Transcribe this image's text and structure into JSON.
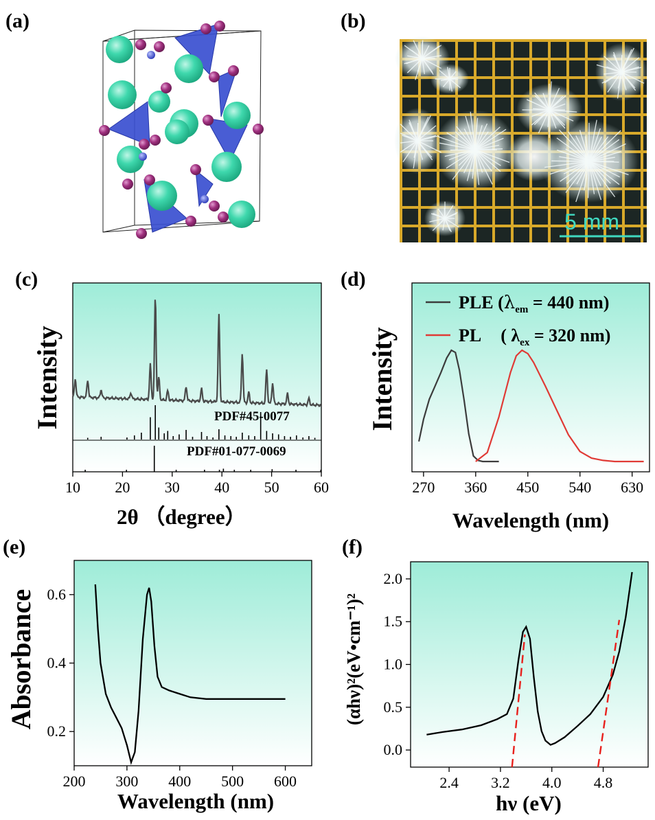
{
  "panels": {
    "a": "(a)",
    "b": "(b)",
    "c": "(c)",
    "d": "(d)",
    "e": "(e)",
    "f": "(f)"
  },
  "photo": {
    "scale_bar": "5 mm"
  },
  "colors": {
    "plot_bg_top": "#9eecd8",
    "plot_bg_bottom": "#ffffff",
    "ple": "#3c3c3c",
    "pl": "#e03a35",
    "fit": "#e8201c",
    "teal_atom": "#39d6a8",
    "purple_atom": "#9c2c7c",
    "tetra": "#3a4fd0"
  },
  "chart_data": [
    {
      "panel": "c",
      "type": "line",
      "xlabel": "2θ （degree）",
      "ylabel": "Intensity",
      "xlim": [
        10,
        60
      ],
      "xticks": [
        "10",
        "20",
        "30",
        "40",
        "50",
        "60"
      ],
      "references": [
        "PDF#45-0077",
        "PDF#01-077-0069"
      ],
      "series": [
        {
          "x": [
            10.5,
            13.0,
            15.7,
            21.7,
            25.6,
            26.6,
            27.3,
            29.1,
            32.8,
            35.9,
            39.4,
            44.1,
            45.4,
            49.0,
            50.2,
            53.2,
            57.5
          ],
          "y": [
            0.18,
            0.17,
            0.08,
            0.06,
            0.34,
            1.0,
            0.22,
            0.09,
            0.14,
            0.12,
            0.85,
            0.48,
            0.1,
            0.33,
            0.2,
            0.1,
            0.06
          ]
        }
      ],
      "ref_sticks_45_0077": {
        "x": [
          13.0,
          15.7,
          20.9,
          22.4,
          23.8,
          25.6,
          26.6,
          27.3,
          28.4,
          29.1,
          30.2,
          31.4,
          32.8,
          34.1,
          35.9,
          37.0,
          38.2,
          39.4,
          40.6,
          41.8,
          42.9,
          44.1,
          45.4,
          46.6,
          47.8,
          49.0,
          50.2,
          51.4,
          52.6,
          53.8,
          55.0,
          56.3,
          57.5,
          58.7
        ],
        "y": [
          0.05,
          0.08,
          0.06,
          0.12,
          0.2,
          0.65,
          1.0,
          0.35,
          0.18,
          0.25,
          0.1,
          0.15,
          0.28,
          0.08,
          0.22,
          0.1,
          0.06,
          0.3,
          0.12,
          0.1,
          0.08,
          0.2,
          0.12,
          0.1,
          0.8,
          0.25,
          0.18,
          0.15,
          0.1,
          0.08,
          0.12,
          0.06,
          0.1,
          0.05
        ]
      },
      "ref_sticks_01_077_0069": {
        "x": [
          12.5,
          20.8,
          26.4,
          30.8,
          36.5,
          39.5,
          40.3,
          42.5,
          45.8,
          50.1,
          54.9,
          59.9
        ],
        "y": [
          0.04,
          0.06,
          1.0,
          0.05,
          0.08,
          0.07,
          0.12,
          0.06,
          0.05,
          0.1,
          0.06,
          0.04
        ]
      }
    },
    {
      "panel": "d",
      "type": "line",
      "xlabel": "Wavelength (nm)",
      "ylabel": "Intensity",
      "xlim": [
        250,
        660
      ],
      "xticks": [
        "270",
        "360",
        "450",
        "540",
        "630"
      ],
      "legend": [
        {
          "label": "PLE (",
          "sym": "λ",
          "sub": "em",
          "rest": " = 440 nm)"
        },
        {
          "label": "PL",
          "sym": "( λ",
          "sub": "ex",
          "rest": " = 320 nm)"
        }
      ],
      "series": [
        {
          "name": "PLE (λem = 440 nm)",
          "x": [
            262,
            270,
            280,
            290,
            300,
            310,
            318,
            325,
            332,
            340,
            348,
            356,
            364,
            372,
            385,
            400
          ],
          "y": [
            0.18,
            0.38,
            0.56,
            0.68,
            0.8,
            0.93,
            1.0,
            0.98,
            0.82,
            0.55,
            0.25,
            0.05,
            0.01,
            0.0,
            0.0,
            0.0
          ]
        },
        {
          "name": "PL (λex = 320 nm)",
          "x": [
            360,
            380,
            400,
            420,
            430,
            440,
            450,
            460,
            480,
            500,
            520,
            540,
            560,
            580,
            600,
            630,
            650
          ],
          "y": [
            0.0,
            0.08,
            0.4,
            0.8,
            0.95,
            1.0,
            0.97,
            0.89,
            0.68,
            0.46,
            0.24,
            0.09,
            0.03,
            0.01,
            0.0,
            0.0,
            0.0
          ]
        }
      ]
    },
    {
      "panel": "e",
      "type": "line",
      "xlabel": "Wavelength (nm)",
      "ylabel": "Absorbance",
      "xlim": [
        200,
        650
      ],
      "ylim": [
        0.1,
        0.7
      ],
      "xticks": [
        "200",
        "300",
        "400",
        "500",
        "600"
      ],
      "yticks": [
        "0.2",
        "0.4",
        "0.6"
      ],
      "series": [
        {
          "x": [
            240,
            245,
            250,
            260,
            270,
            280,
            290,
            300,
            308,
            315,
            322,
            330,
            338,
            342,
            346,
            352,
            358,
            366,
            380,
            400,
            420,
            450,
            500,
            550,
            600
          ],
          "y": [
            0.63,
            0.5,
            0.4,
            0.31,
            0.27,
            0.24,
            0.21,
            0.16,
            0.11,
            0.14,
            0.26,
            0.47,
            0.6,
            0.62,
            0.58,
            0.45,
            0.36,
            0.33,
            0.32,
            0.31,
            0.3,
            0.295,
            0.295,
            0.295,
            0.295
          ]
        }
      ]
    },
    {
      "panel": "f",
      "type": "line",
      "xlabel": "hν (eV)",
      "ylabel": "(αhν)²(eV•cm⁻¹)²",
      "xlim": [
        1.8,
        5.5
      ],
      "ylim": [
        -0.2,
        2.2
      ],
      "xticks": [
        "2.4",
        "3.2",
        "4.0",
        "4.8"
      ],
      "yticks": [
        "0.0",
        "0.5",
        "1.0",
        "1.5",
        "2.0"
      ],
      "series": [
        {
          "x": [
            2.05,
            2.3,
            2.6,
            2.9,
            3.15,
            3.3,
            3.4,
            3.48,
            3.55,
            3.6,
            3.66,
            3.72,
            3.78,
            3.84,
            3.9,
            3.98,
            4.05,
            4.2,
            4.4,
            4.6,
            4.8,
            4.95,
            5.05,
            5.15,
            5.25
          ],
          "y": [
            0.18,
            0.21,
            0.24,
            0.29,
            0.36,
            0.42,
            0.6,
            1.05,
            1.38,
            1.44,
            1.3,
            0.85,
            0.45,
            0.22,
            0.11,
            0.06,
            0.08,
            0.15,
            0.28,
            0.42,
            0.62,
            0.88,
            1.15,
            1.55,
            2.08
          ]
        }
      ],
      "fit_lines": [
        {
          "x": [
            3.38,
            3.58
          ],
          "y": [
            -0.2,
            1.35
          ]
        },
        {
          "x": [
            4.72,
            5.05
          ],
          "y": [
            -0.2,
            1.52
          ]
        }
      ]
    }
  ]
}
